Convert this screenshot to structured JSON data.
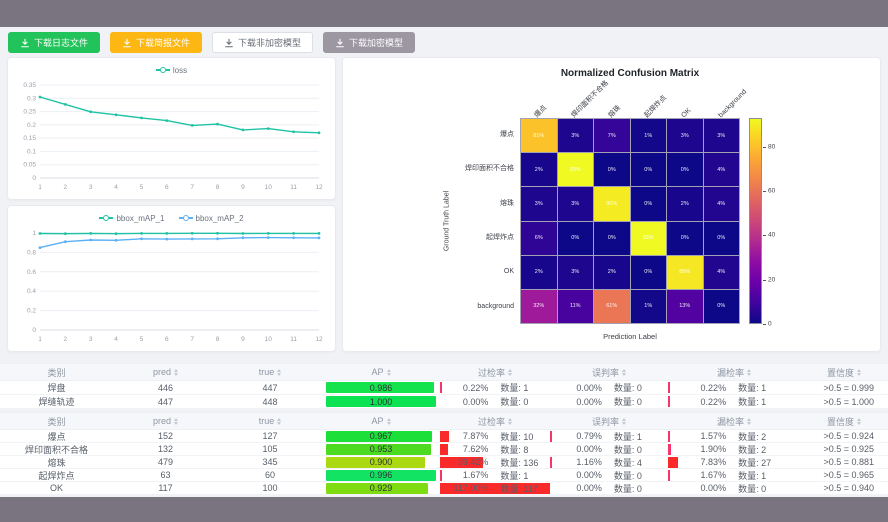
{
  "theme": {
    "frame": "#7a7480",
    "page_bg": "#f1f2f5",
    "teal": "#1fc3a4",
    "blue": "#5cb1f5",
    "bar_red_wide": "#fb2a2a",
    "bar_red_thin": "#f5356b"
  },
  "toolbar": {
    "buttons": [
      {
        "name": "download-log-file-button",
        "label": "下载日志文件",
        "bg": "#21c35a",
        "fg": "#ffffff",
        "border": "#21c35a"
      },
      {
        "name": "download-report-file-button",
        "label": "下载简报文件",
        "bg": "#fcb712",
        "fg": "#ffffff",
        "border": "#fcb712"
      },
      {
        "name": "download-unencrypted-model-button",
        "label": "下载非加密模型",
        "bg": "#ffffff",
        "fg": "#676d75",
        "border": "#dcdfe6"
      },
      {
        "name": "download-encrypted-model-button",
        "label": "下载加密模型",
        "bg": "#9c97a1",
        "fg": "#ffffff",
        "border": "#9c97a1"
      }
    ]
  },
  "chart_data": [
    {
      "type": "line",
      "title": "",
      "legend_position": "top",
      "x": [
        1,
        2,
        3,
        4,
        5,
        6,
        7,
        8,
        9,
        10,
        11,
        12
      ],
      "yticks": [
        0,
        0.05,
        0.1,
        0.15,
        0.2,
        0.25,
        0.3,
        0.35
      ],
      "ylim": [
        0,
        0.35
      ],
      "grid": true,
      "series": [
        {
          "name": "loss",
          "color": "#1fc3a4",
          "values": [
            0.305,
            0.277,
            0.249,
            0.238,
            0.226,
            0.216,
            0.198,
            0.203,
            0.181,
            0.186,
            0.174,
            0.17
          ]
        }
      ]
    },
    {
      "type": "line",
      "title": "",
      "legend_position": "top",
      "x": [
        1,
        2,
        3,
        4,
        5,
        6,
        7,
        8,
        9,
        10,
        11,
        12
      ],
      "yticks": [
        0,
        0.2,
        0.4,
        0.6,
        0.8,
        1
      ],
      "ylim": [
        0,
        1
      ],
      "grid": true,
      "series": [
        {
          "name": "bbox_mAP_1",
          "color": "#1fc3a4",
          "values": [
            0.995,
            0.993,
            0.996,
            0.993,
            0.996,
            0.996,
            0.997,
            0.997,
            0.995,
            0.996,
            0.996,
            0.996
          ]
        },
        {
          "name": "bbox_mAP_2",
          "color": "#5cb1f5",
          "values": [
            0.85,
            0.91,
            0.928,
            0.925,
            0.94,
            0.937,
            0.939,
            0.94,
            0.951,
            0.953,
            0.951,
            0.95
          ]
        }
      ]
    },
    {
      "type": "heatmap",
      "title": "Normalized Confusion Matrix",
      "xlabel": "Prediction Label",
      "ylabel": "Ground Truth Label",
      "categories": [
        "爆点",
        "焊印面积不合格",
        "熔珠",
        "起焊炸点",
        "OK",
        "background"
      ],
      "unit": "%",
      "matrix": [
        [
          81,
          3,
          7,
          1,
          3,
          3
        ],
        [
          2,
          93,
          0,
          0,
          0,
          4
        ],
        [
          3,
          3,
          90,
          0,
          2,
          4
        ],
        [
          6,
          0,
          0,
          93,
          0,
          0
        ],
        [
          2,
          3,
          2,
          0,
          89,
          4
        ],
        [
          32,
          11,
          61,
          1,
          13,
          0
        ]
      ],
      "scale_max": 93,
      "colorbar_ticks": [
        0,
        20,
        40,
        60,
        80
      ],
      "colormap": "plasma",
      "legend_position": "right-colorbar"
    }
  ],
  "tables": [
    {
      "columns": [
        {
          "label": "类别",
          "sortable": false
        },
        {
          "label": "pred",
          "sortable": true
        },
        {
          "label": "true",
          "sortable": true
        },
        {
          "label": "AP",
          "sortable": true
        },
        {
          "label": "过检率",
          "sortable": true
        },
        {
          "label": "误判率",
          "sortable": true
        },
        {
          "label": "漏检率",
          "sortable": true
        },
        {
          "label": "置信度",
          "sortable": true
        }
      ],
      "rows": [
        {
          "label": "焊盘",
          "pred": "446",
          "true": "447",
          "ap_text": "0.986",
          "ap_value": 0.986,
          "ap_color": "#15e34d",
          "over": {
            "pct": "0.22%",
            "value": 0.22,
            "count": "数量: 1"
          },
          "mis": {
            "pct": "0.00%",
            "value": 0,
            "count": "数量: 0"
          },
          "miss": {
            "pct": "0.22%",
            "value": 0.22,
            "count": "数量: 1"
          },
          "conf": ">0.5 = 0.999"
        },
        {
          "label": "焊缝轨迹",
          "pred": "447",
          "true": "448",
          "ap_text": "1.000",
          "ap_value": 1.0,
          "ap_color": "#0ce352",
          "over": {
            "pct": "0.00%",
            "value": 0,
            "count": "数量: 0"
          },
          "mis": {
            "pct": "0.00%",
            "value": 0,
            "count": "数量: 0"
          },
          "miss": {
            "pct": "0.22%",
            "value": 0.22,
            "count": "数量: 1"
          },
          "conf": ">0.5 = 1.000"
        }
      ]
    },
    {
      "columns": [
        {
          "label": "类别",
          "sortable": false
        },
        {
          "label": "pred",
          "sortable": true
        },
        {
          "label": "true",
          "sortable": true
        },
        {
          "label": "AP",
          "sortable": true
        },
        {
          "label": "过检率",
          "sortable": true
        },
        {
          "label": "误判率",
          "sortable": true
        },
        {
          "label": "漏检率",
          "sortable": true
        },
        {
          "label": "置信度",
          "sortable": true
        }
      ],
      "rows": [
        {
          "label": "爆点",
          "pred": "152",
          "true": "127",
          "ap_text": "0.967",
          "ap_value": 0.967,
          "ap_color": "#1ddf3a",
          "over": {
            "pct": "7.87%",
            "value": 7.87,
            "count": "数量: 10"
          },
          "mis": {
            "pct": "0.79%",
            "value": 0.79,
            "count": "数量: 1"
          },
          "miss": {
            "pct": "1.57%",
            "value": 1.57,
            "count": "数量: 2"
          },
          "conf": ">0.5 = 0.924"
        },
        {
          "label": "焊印面积不合格",
          "pred": "132",
          "true": "105",
          "ap_text": "0.953",
          "ap_value": 0.953,
          "ap_color": "#4cdb20",
          "over": {
            "pct": "7.62%",
            "value": 7.62,
            "count": "数量: 8"
          },
          "mis": {
            "pct": "0.00%",
            "value": 0,
            "count": "数量: 0"
          },
          "miss": {
            "pct": "1.90%",
            "value": 1.9,
            "count": "数量: 2"
          },
          "conf": ">0.5 = 0.925"
        },
        {
          "label": "熔珠",
          "pred": "479",
          "true": "345",
          "ap_text": "0.900",
          "ap_value": 0.9,
          "ap_color": "#abd911",
          "over": {
            "pct": "39.42%",
            "value": 39.42,
            "count": "数量: 136"
          },
          "mis": {
            "pct": "1.16%",
            "value": 1.16,
            "count": "数量: 4"
          },
          "miss": {
            "pct": "7.83%",
            "value": 7.83,
            "count": "数量: 27"
          },
          "conf": ">0.5 = 0.881"
        },
        {
          "label": "起焊炸点",
          "pred": "63",
          "true": "60",
          "ap_text": "0.996",
          "ap_value": 0.996,
          "ap_color": "#12e363",
          "over": {
            "pct": "1.67%",
            "value": 1.67,
            "count": "数量: 1"
          },
          "mis": {
            "pct": "0.00%",
            "value": 0,
            "count": "数量: 0"
          },
          "miss": {
            "pct": "1.67%",
            "value": 1.67,
            "count": "数量: 1"
          },
          "conf": ">0.5 = 0.965"
        },
        {
          "label": "OK",
          "pred": "117",
          "true": "100",
          "ap_text": "0.929",
          "ap_value": 0.929,
          "ap_color": "#7fdc11",
          "over": {
            "pct": "117.00%",
            "value": 117,
            "count": "数量: 117"
          },
          "mis": {
            "pct": "0.00%",
            "value": 0,
            "count": "数量: 0"
          },
          "miss": {
            "pct": "0.00%",
            "value": 0,
            "count": "数量: 0"
          },
          "conf": ">0.5 = 0.940"
        }
      ]
    }
  ]
}
